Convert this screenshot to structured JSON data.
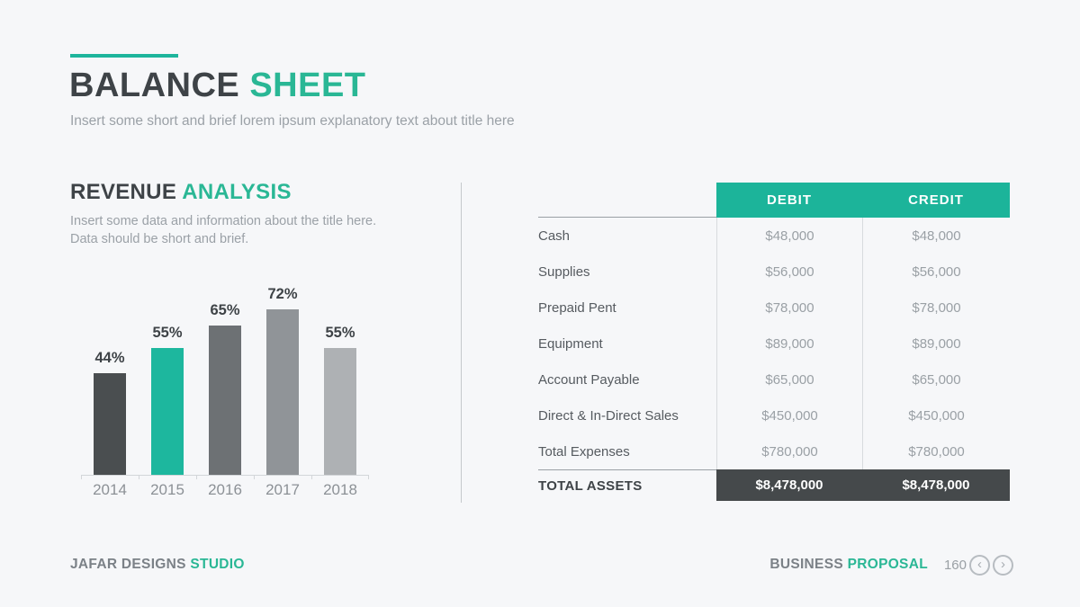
{
  "colors": {
    "background": "#f6f7f9",
    "accent_teal": "#1db59c",
    "accent_text": "#2ab795",
    "dark_text": "#3e4347",
    "muted_text": "#9ba1a7",
    "table_header_bg": "#1cb49a",
    "table_total_bg": "#45494b"
  },
  "header": {
    "title_primary": "BALANCE ",
    "title_accent": "SHEET",
    "subtitle": "Insert some short and brief lorem ipsum explanatory text about title here"
  },
  "left_section": {
    "heading_primary": "REVENUE ",
    "heading_accent": "ANALYSIS",
    "description": "Insert some data and information about the title here. Data should be short and brief."
  },
  "chart_data": {
    "type": "bar",
    "title": "REVENUE ANALYSIS",
    "categories": [
      "2014",
      "2015",
      "2016",
      "2017",
      "2018"
    ],
    "values": [
      44,
      55,
      65,
      72,
      55
    ],
    "value_labels": [
      "44%",
      "55%",
      "65%",
      "72%",
      "55%"
    ],
    "bar_colors": [
      "#4a4e50",
      "#1db79e",
      "#6d7174",
      "#909498",
      "#aeb1b4"
    ],
    "xlabel": "",
    "ylabel": "",
    "ylim": [
      0,
      80
    ],
    "grid": false,
    "legend": false,
    "data_labels_position": "above-bars"
  },
  "table": {
    "columns": [
      "DEBIT",
      "CREDIT"
    ],
    "rows": [
      {
        "label": "Cash",
        "debit": "$48,000",
        "credit": "$48,000"
      },
      {
        "label": "Supplies",
        "debit": "$56,000",
        "credit": "$56,000"
      },
      {
        "label": "Prepaid Pent",
        "debit": "$78,000",
        "credit": "$78,000"
      },
      {
        "label": "Equipment",
        "debit": "$89,000",
        "credit": "$89,000"
      },
      {
        "label": "Account Payable",
        "debit": "$65,000",
        "credit": "$65,000"
      },
      {
        "label": "Direct & In-Direct Sales",
        "debit": "$450,000",
        "credit": "$450,000"
      },
      {
        "label": "Total Expenses",
        "debit": "$780,000",
        "credit": "$780,000"
      }
    ],
    "total": {
      "label": "TOTAL ASSETS",
      "debit": "$8,478,000",
      "credit": "$8,478,000"
    }
  },
  "footer": {
    "brand_primary": "JAFAR DESIGNS ",
    "brand_accent": "STUDIO",
    "doc_primary": "BUSINESS ",
    "doc_accent": "PROPOSAL",
    "page_number": "160",
    "nav_prev_icon": "‹",
    "nav_next_icon": "›"
  }
}
